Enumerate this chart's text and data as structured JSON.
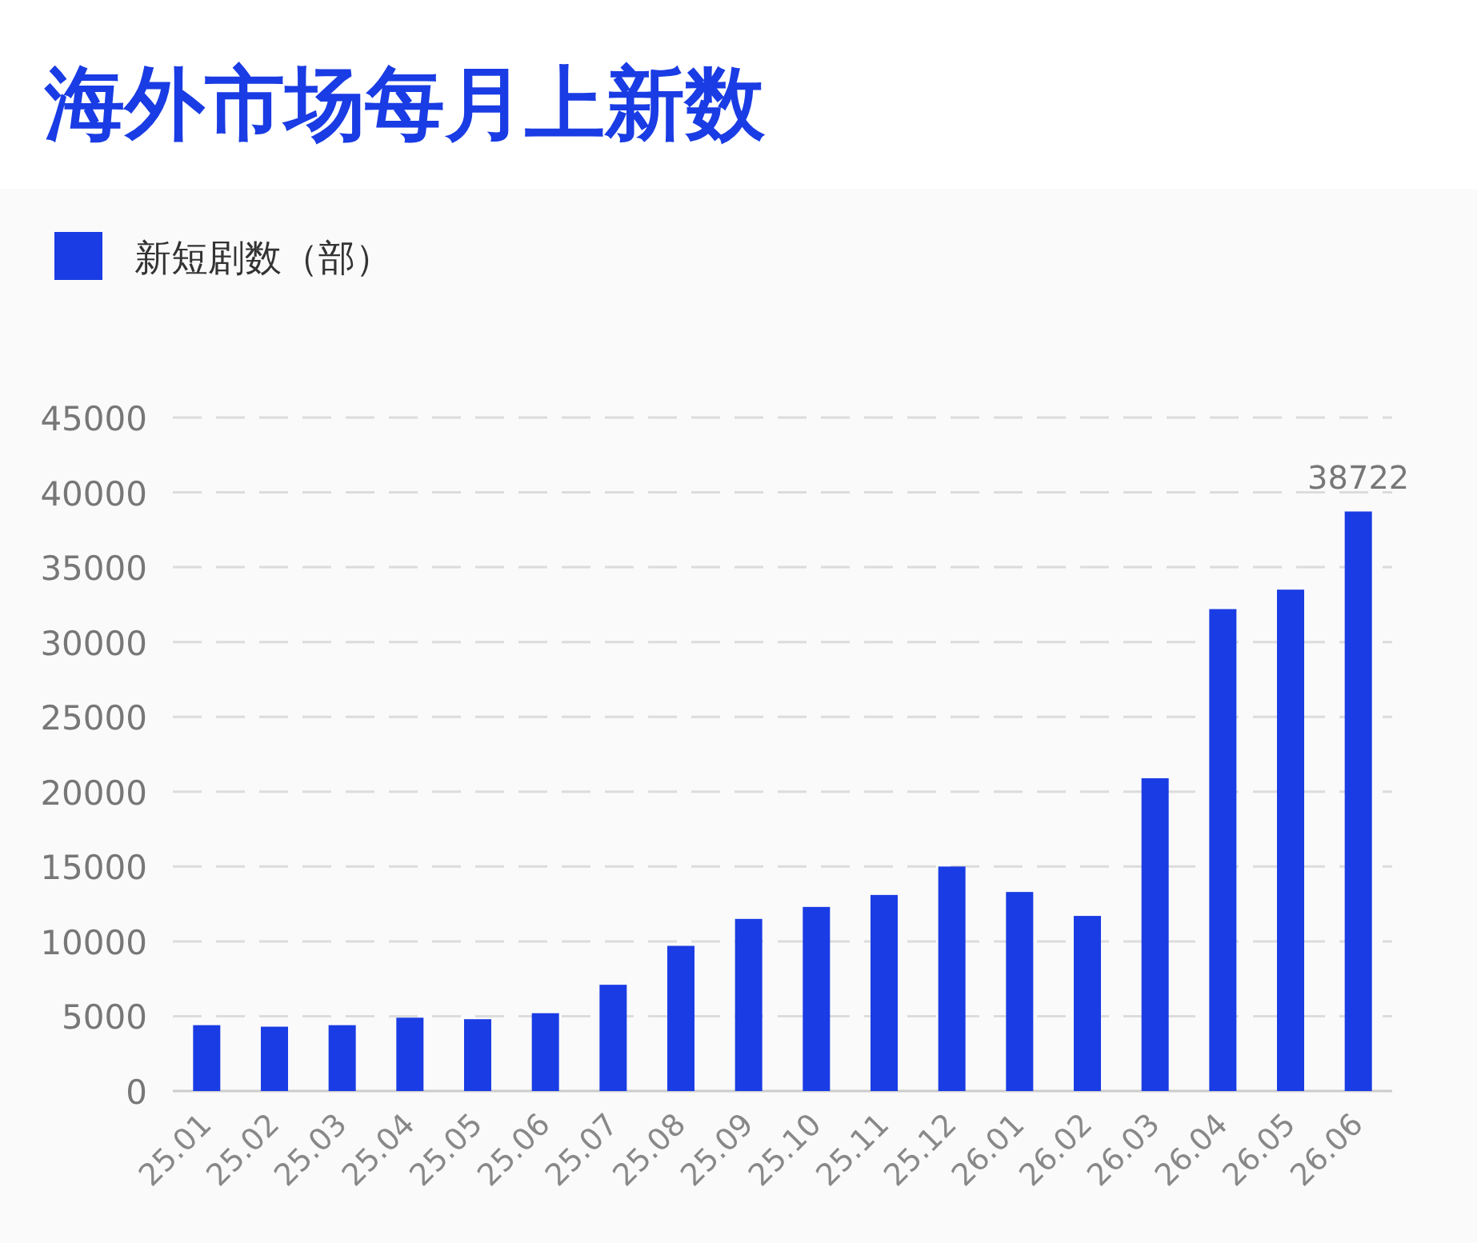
{
  "chart_data": {
    "type": "bar",
    "title": "海外市场每月上新数",
    "categories": [
      "25.01",
      "25.02",
      "25.03",
      "25.04",
      "25.05",
      "25.06",
      "25.07",
      "25.08",
      "25.09",
      "25.10",
      "25.11",
      "25.12",
      "26.01",
      "26.02",
      "26.03",
      "26.04",
      "26.05",
      "26.06"
    ],
    "series": [
      {
        "name": "新短剧数（部）",
        "color": "#1a3ce4",
        "values": [
          4400,
          4300,
          4400,
          4900,
          4800,
          5200,
          7100,
          9700,
          11500,
          12300,
          13100,
          15000,
          13300,
          11700,
          20900,
          32200,
          33500,
          38722
        ],
        "value_labels": [
          null,
          null,
          null,
          null,
          null,
          null,
          null,
          null,
          null,
          null,
          null,
          null,
          null,
          null,
          null,
          null,
          null,
          "38722"
        ]
      }
    ],
    "ylim": [
      0,
      45000
    ],
    "yticks": [
      0,
      5000,
      10000,
      15000,
      20000,
      25000,
      30000,
      35000,
      40000,
      45000
    ],
    "grid": "y",
    "legend": "top left"
  }
}
